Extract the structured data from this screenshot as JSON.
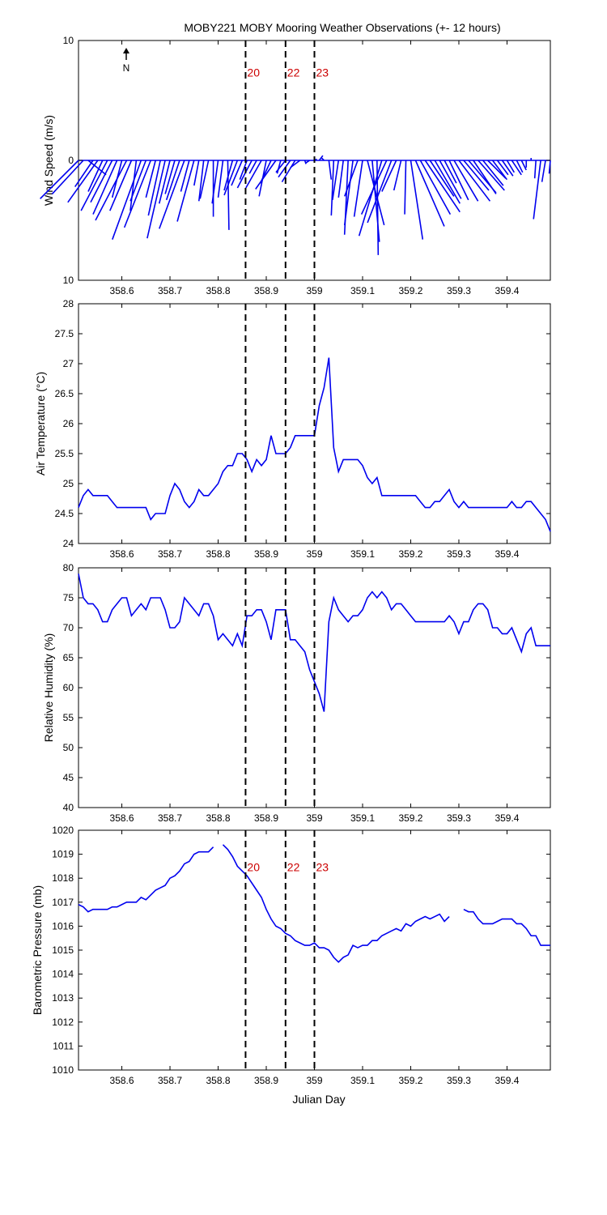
{
  "title": "MOBY221 MOBY Mooring Weather Observations (+- 12 hours)",
  "xlabel": "Julian Day",
  "north_label": "N",
  "series_color": "#0000ee",
  "annotation_color": "#cc0000",
  "chart_data": [
    {
      "type": "line",
      "panel": "wind",
      "ylabel": "Wind Speed (m/s)",
      "xlim": [
        358.51,
        359.49
      ],
      "ylim": [
        -10,
        10
      ],
      "yticks": [
        "10",
        "0",
        "10"
      ],
      "ytick_values": [
        10,
        0,
        -10
      ],
      "xticks": [
        "358.6",
        "358.7",
        "358.8",
        "358.9",
        "359",
        "359.1",
        "359.2",
        "359.3",
        "359.4"
      ],
      "xtick_values": [
        358.6,
        358.7,
        358.8,
        358.9,
        359.0,
        359.1,
        359.2,
        359.3,
        359.4
      ],
      "vlines": [
        358.857,
        358.94,
        359.0
      ],
      "annotations": [
        "20",
        "22",
        "23"
      ],
      "annotation_y": 7,
      "sticks": [
        [
          358.51,
          -3.2,
          -3.2
        ],
        [
          358.52,
          -2.6,
          -2.8
        ],
        [
          358.53,
          1.5,
          -1.2
        ],
        [
          358.54,
          -1.5,
          -2.2
        ],
        [
          358.55,
          -2.5,
          -3.5
        ],
        [
          358.56,
          -1.2,
          -2.6
        ],
        [
          358.57,
          -2.2,
          -4.2
        ],
        [
          358.58,
          -1.8,
          -3.5
        ],
        [
          358.59,
          -2.0,
          -4.5
        ],
        [
          358.6,
          -0.8,
          -3.1
        ],
        [
          358.61,
          -2.6,
          -5.0
        ],
        [
          358.62,
          -1.8,
          -4.2
        ],
        [
          358.63,
          -0.5,
          -4.2
        ],
        [
          358.64,
          -2.4,
          -6.6
        ],
        [
          358.65,
          -1.3,
          -3.4
        ],
        [
          358.66,
          -2.2,
          -5.6
        ],
        [
          358.67,
          -0.8,
          -3.1
        ],
        [
          358.68,
          -1.0,
          -4.6
        ],
        [
          358.69,
          -1.5,
          -6.5
        ],
        [
          358.7,
          -0.9,
          -3.6
        ],
        [
          358.71,
          -0.8,
          -2.8
        ],
        [
          358.72,
          -1.1,
          -3.3
        ],
        [
          358.73,
          -2.1,
          -5.7
        ],
        [
          358.74,
          -0.7,
          -2.6
        ],
        [
          358.75,
          -1.4,
          -5.1
        ],
        [
          358.76,
          -0.4,
          -2.1
        ],
        [
          358.77,
          -0.4,
          -3.4
        ],
        [
          358.78,
          -0.7,
          -3.2
        ],
        [
          358.79,
          0.0,
          -4.7
        ],
        [
          358.8,
          -0.5,
          -3.6
        ],
        [
          358.81,
          -0.4,
          -3.1
        ],
        [
          358.82,
          0.1,
          -5.8
        ],
        [
          358.83,
          -0.7,
          -2.5
        ],
        [
          358.84,
          -1.1,
          -2.9
        ],
        [
          358.85,
          -0.9,
          -2.1
        ],
        [
          358.86,
          -0.6,
          -1.6
        ],
        [
          358.87,
          -1.2,
          -2.3
        ],
        [
          358.88,
          -0.6,
          -1.1
        ],
        [
          358.89,
          -1.3,
          -2.3
        ],
        [
          358.9,
          -0.6,
          -3.0
        ],
        [
          358.91,
          -0.9,
          -1.9
        ],
        [
          358.92,
          -1.7,
          -2.4
        ],
        [
          358.93,
          -0.3,
          -1.1
        ],
        [
          358.94,
          -0.8,
          -1.0
        ],
        [
          358.95,
          -1.0,
          -1.4
        ],
        [
          358.96,
          -1.1,
          -1.8
        ],
        [
          358.97,
          -0.8,
          -0.6
        ],
        [
          358.98,
          0.1,
          -0.3
        ],
        [
          358.99,
          -0.3,
          -0.2
        ],
        [
          359.0,
          0.2,
          0.1
        ],
        [
          359.01,
          0.3,
          0.4
        ],
        [
          359.02,
          -0.2,
          0.2
        ],
        [
          359.03,
          0.2,
          -1.6
        ],
        [
          359.04,
          -0.2,
          -4.6
        ],
        [
          359.05,
          -0.5,
          -3.3
        ],
        [
          359.06,
          -0.4,
          -3.1
        ],
        [
          359.07,
          -0.3,
          -6.2
        ],
        [
          359.08,
          -0.7,
          -5.4
        ],
        [
          359.09,
          -1.1,
          -3.0
        ],
        [
          359.1,
          -0.7,
          -4.7
        ],
        [
          359.11,
          1.4,
          -5.4
        ],
        [
          359.12,
          0.6,
          -6.8
        ],
        [
          359.13,
          0.1,
          -7.9
        ],
        [
          359.14,
          -1.9,
          -6.3
        ],
        [
          359.15,
          -2.1,
          -4.5
        ],
        [
          359.16,
          -2.0,
          -5.2
        ],
        [
          359.17,
          -1.2,
          -2.6
        ],
        [
          359.18,
          -0.6,
          -2.5
        ],
        [
          359.19,
          -0.1,
          -4.5
        ],
        [
          359.2,
          1.0,
          -6.6
        ],
        [
          359.21,
          2.4,
          -5.5
        ],
        [
          359.22,
          2.5,
          -4.5
        ],
        [
          359.23,
          2.9,
          -4.3
        ],
        [
          359.24,
          2.0,
          -3.0
        ],
        [
          359.25,
          2.1,
          -3.6
        ],
        [
          359.26,
          1.8,
          -3.2
        ],
        [
          359.27,
          1.0,
          -1.9
        ],
        [
          359.28,
          1.6,
          -3.3
        ],
        [
          359.29,
          2.0,
          -3.4
        ],
        [
          359.3,
          2.6,
          -3.4
        ],
        [
          359.31,
          2.1,
          -2.5
        ],
        [
          359.32,
          2.3,
          -2.7
        ],
        [
          359.33,
          1.9,
          -2.8
        ],
        [
          359.34,
          2.2,
          -2.5
        ],
        [
          359.35,
          1.7,
          -2.1
        ],
        [
          359.36,
          1.5,
          -1.5
        ],
        [
          359.37,
          1.2,
          -1.6
        ],
        [
          359.38,
          0.9,
          -1.2
        ],
        [
          359.39,
          0.9,
          -1.3
        ],
        [
          359.4,
          0.6,
          -1.0
        ],
        [
          359.41,
          0.8,
          -1.2
        ],
        [
          359.42,
          0.5,
          -1.0
        ],
        [
          359.43,
          0.4,
          -0.8
        ],
        [
          359.44,
          0.0,
          -0.6
        ],
        [
          359.45,
          0.0,
          0.2
        ],
        [
          359.46,
          -0.1,
          -1.5
        ],
        [
          359.47,
          -0.6,
          -4.9
        ],
        [
          359.48,
          -0.3,
          -1.8
        ],
        [
          359.49,
          -0.1,
          -1.1
        ]
      ]
    },
    {
      "type": "line",
      "panel": "air_temperature",
      "ylabel": "Air Temperature (°C)",
      "xlim": [
        358.51,
        359.49
      ],
      "ylim": [
        24,
        28
      ],
      "yticks": [
        "24",
        "24.5",
        "25",
        "25.5",
        "26",
        "26.5",
        "27",
        "27.5",
        "28"
      ],
      "ytick_values": [
        24,
        24.5,
        25,
        25.5,
        26,
        26.5,
        27,
        27.5,
        28
      ],
      "xticks": [
        "358.6",
        "358.7",
        "358.8",
        "358.9",
        "359",
        "359.1",
        "359.2",
        "359.3",
        "359.4"
      ],
      "xtick_values": [
        358.6,
        358.7,
        358.8,
        358.9,
        359.0,
        359.1,
        359.2,
        359.3,
        359.4
      ],
      "vlines": [
        358.857,
        358.94,
        359.0
      ],
      "x": [
        358.51,
        358.52,
        358.53,
        358.54,
        358.55,
        358.56,
        358.57,
        358.58,
        358.59,
        358.6,
        358.61,
        358.62,
        358.63,
        358.64,
        358.65,
        358.66,
        358.67,
        358.68,
        358.69,
        358.7,
        358.71,
        358.72,
        358.73,
        358.74,
        358.75,
        358.76,
        358.77,
        358.78,
        358.79,
        358.8,
        358.81,
        358.82,
        358.83,
        358.84,
        358.85,
        358.86,
        358.87,
        358.88,
        358.89,
        358.9,
        358.91,
        358.92,
        358.93,
        358.94,
        358.95,
        358.96,
        358.97,
        358.98,
        358.99,
        359.0,
        359.01,
        359.02,
        359.03,
        359.04,
        359.05,
        359.06,
        359.07,
        359.08,
        359.09,
        359.1,
        359.11,
        359.12,
        359.13,
        359.14,
        359.15,
        359.16,
        359.17,
        359.18,
        359.19,
        359.2,
        359.21,
        359.22,
        359.23,
        359.24,
        359.25,
        359.26,
        359.27,
        359.28,
        359.29,
        359.3,
        359.31,
        359.32,
        359.33,
        359.34,
        359.35,
        359.36,
        359.37,
        359.38,
        359.39,
        359.4,
        359.41,
        359.42,
        359.43,
        359.44,
        359.45,
        359.46,
        359.47,
        359.48,
        359.49
      ],
      "y": [
        24.6,
        24.8,
        24.9,
        24.8,
        24.8,
        24.8,
        24.8,
        24.7,
        24.6,
        24.6,
        24.6,
        24.6,
        24.6,
        24.6,
        24.6,
        24.4,
        24.5,
        24.5,
        24.5,
        24.8,
        25.0,
        24.9,
        24.7,
        24.6,
        24.7,
        24.9,
        24.8,
        24.8,
        24.9,
        25.0,
        25.2,
        25.3,
        25.3,
        25.5,
        25.5,
        25.4,
        25.2,
        25.4,
        25.3,
        25.4,
        25.8,
        25.5,
        25.5,
        25.5,
        25.6,
        25.8,
        25.8,
        25.8,
        25.8,
        25.8,
        26.3,
        26.6,
        27.1,
        25.6,
        25.2,
        25.4,
        25.4,
        25.4,
        25.4,
        25.3,
        25.1,
        25.0,
        25.1,
        24.8,
        24.8,
        24.8,
        24.8,
        24.8,
        24.8,
        24.8,
        24.8,
        24.7,
        24.6,
        24.6,
        24.7,
        24.7,
        24.8,
        24.9,
        24.7,
        24.6,
        24.7,
        24.6,
        24.6,
        24.6,
        24.6,
        24.6,
        24.6,
        24.6,
        24.6,
        24.6,
        24.7,
        24.6,
        24.6,
        24.7,
        24.7,
        24.6,
        24.5,
        24.4,
        24.2
      ]
    },
    {
      "type": "line",
      "panel": "relative_humidity",
      "ylabel": "Relative Humidity (%)",
      "xlim": [
        358.51,
        359.49
      ],
      "ylim": [
        40,
        80
      ],
      "yticks": [
        "40",
        "45",
        "50",
        "55",
        "60",
        "65",
        "70",
        "75",
        "80"
      ],
      "ytick_values": [
        40,
        45,
        50,
        55,
        60,
        65,
        70,
        75,
        80
      ],
      "xticks": [
        "358.6",
        "358.7",
        "358.8",
        "358.9",
        "359",
        "359.1",
        "359.2",
        "359.3",
        "359.4"
      ],
      "xtick_values": [
        358.6,
        358.7,
        358.8,
        358.9,
        359.0,
        359.1,
        359.2,
        359.3,
        359.4
      ],
      "vlines": [
        358.857,
        358.94,
        359.0
      ],
      "x": [
        358.51,
        358.52,
        358.53,
        358.54,
        358.55,
        358.56,
        358.57,
        358.58,
        358.59,
        358.6,
        358.61,
        358.62,
        358.63,
        358.64,
        358.65,
        358.66,
        358.67,
        358.68,
        358.69,
        358.7,
        358.71,
        358.72,
        358.73,
        358.74,
        358.75,
        358.76,
        358.77,
        358.78,
        358.79,
        358.8,
        358.81,
        358.82,
        358.83,
        358.84,
        358.85,
        358.86,
        358.87,
        358.88,
        358.89,
        358.9,
        358.91,
        358.92,
        358.93,
        358.94,
        358.95,
        358.96,
        358.97,
        358.98,
        358.99,
        359.0,
        359.01,
        359.02,
        359.03,
        359.04,
        359.05,
        359.06,
        359.07,
        359.08,
        359.09,
        359.1,
        359.11,
        359.12,
        359.13,
        359.14,
        359.15,
        359.16,
        359.17,
        359.18,
        359.19,
        359.2,
        359.21,
        359.22,
        359.23,
        359.24,
        359.25,
        359.26,
        359.27,
        359.28,
        359.29,
        359.3,
        359.31,
        359.32,
        359.33,
        359.34,
        359.35,
        359.36,
        359.37,
        359.38,
        359.39,
        359.4,
        359.41,
        359.42,
        359.43,
        359.44,
        359.45,
        359.46,
        359.47,
        359.48,
        359.49
      ],
      "y": [
        79,
        75,
        74,
        74,
        73,
        71,
        71,
        73,
        74,
        75,
        75,
        72,
        73,
        74,
        73,
        75,
        75,
        75,
        73,
        70,
        70,
        71,
        75,
        74,
        73,
        72,
        74,
        74,
        72,
        68,
        69,
        68,
        67,
        69,
        67,
        72,
        72,
        73,
        73,
        71,
        68,
        73,
        73,
        73,
        68,
        68,
        67,
        66,
        63,
        61,
        59,
        56,
        71,
        75,
        73,
        72,
        71,
        72,
        72,
        73,
        75,
        76,
        75,
        76,
        75,
        73,
        74,
        74,
        73,
        72,
        71,
        71,
        71,
        71,
        71,
        71,
        71,
        72,
        71,
        69,
        71,
        71,
        73,
        74,
        74,
        73,
        70,
        70,
        69,
        69,
        70,
        68,
        66,
        69,
        70,
        67,
        67,
        67,
        67
      ]
    },
    {
      "type": "line",
      "panel": "barometric_pressure",
      "ylabel": "Barometric Pressure (mb)",
      "xlim": [
        358.51,
        359.49
      ],
      "ylim": [
        1010,
        1020
      ],
      "yticks": [
        "1010",
        "1011",
        "1012",
        "1013",
        "1014",
        "1015",
        "1016",
        "1017",
        "1018",
        "1019",
        "1020"
      ],
      "ytick_values": [
        1010,
        1011,
        1012,
        1013,
        1014,
        1015,
        1016,
        1017,
        1018,
        1019,
        1020
      ],
      "xticks": [
        "358.6",
        "358.7",
        "358.8",
        "358.9",
        "359",
        "359.1",
        "359.2",
        "359.3",
        "359.4"
      ],
      "xtick_values": [
        358.6,
        358.7,
        358.8,
        358.9,
        359.0,
        359.1,
        359.2,
        359.3,
        359.4
      ],
      "vlines": [
        358.857,
        358.94,
        359.0
      ],
      "annotations": [
        "20",
        "22",
        "23"
      ],
      "annotation_y": 1018.3,
      "x": [
        358.51,
        358.52,
        358.53,
        358.54,
        358.55,
        358.56,
        358.57,
        358.58,
        358.59,
        358.6,
        358.61,
        358.62,
        358.63,
        358.64,
        358.65,
        358.66,
        358.67,
        358.68,
        358.69,
        358.7,
        358.71,
        358.72,
        358.73,
        358.74,
        358.75,
        358.76,
        358.77,
        358.78,
        358.79,
        358.8,
        358.81,
        358.82,
        358.83,
        358.84,
        358.85,
        358.86,
        358.87,
        358.88,
        358.89,
        358.9,
        358.91,
        358.92,
        358.93,
        358.94,
        358.95,
        358.96,
        358.97,
        358.98,
        358.99,
        359.0,
        359.01,
        359.02,
        359.03,
        359.04,
        359.05,
        359.06,
        359.07,
        359.08,
        359.09,
        359.1,
        359.11,
        359.12,
        359.13,
        359.14,
        359.15,
        359.16,
        359.17,
        359.18,
        359.19,
        359.2,
        359.21,
        359.22,
        359.23,
        359.24,
        359.25,
        359.26,
        359.27,
        359.28,
        359.29,
        359.3,
        359.31,
        359.32,
        359.33,
        359.34,
        359.35,
        359.36,
        359.37,
        359.38,
        359.39,
        359.4,
        359.41,
        359.42,
        359.43,
        359.44,
        359.45,
        359.46,
        359.47,
        359.48,
        359.49
      ],
      "y": [
        1016.9,
        1016.8,
        1016.6,
        1016.7,
        1016.7,
        1016.7,
        1016.7,
        1016.8,
        1016.8,
        1016.9,
        1017.0,
        1017.0,
        1017.0,
        1017.2,
        1017.1,
        1017.3,
        1017.5,
        1017.6,
        1017.7,
        1018.0,
        1018.1,
        1018.3,
        1018.6,
        1018.7,
        1019.0,
        1019.1,
        1019.1,
        1019.1,
        1019.3,
        null,
        1019.4,
        1019.2,
        1018.9,
        1018.5,
        1018.3,
        1018.1,
        1017.8,
        1017.5,
        1017.2,
        1016.7,
        1016.3,
        1016.0,
        1015.9,
        1015.7,
        1015.6,
        1015.4,
        1015.3,
        1015.2,
        1015.2,
        1015.3,
        1015.1,
        1015.1,
        1015.0,
        1014.7,
        1014.5,
        1014.7,
        1014.8,
        1015.2,
        1015.1,
        1015.2,
        1015.2,
        1015.4,
        1015.4,
        1015.6,
        1015.7,
        1015.8,
        1015.9,
        1015.8,
        1016.1,
        1016.0,
        1016.2,
        1016.3,
        1016.4,
        1016.3,
        1016.4,
        1016.5,
        1016.2,
        1016.4,
        null,
        null,
        1016.7,
        1016.6,
        1016.6,
        1016.3,
        1016.1,
        1016.1,
        1016.1,
        1016.2,
        1016.3,
        1016.3,
        1016.3,
        1016.1,
        1016.1,
        1015.9,
        1015.6,
        1015.6,
        1015.2,
        1015.2,
        1015.2
      ]
    }
  ]
}
